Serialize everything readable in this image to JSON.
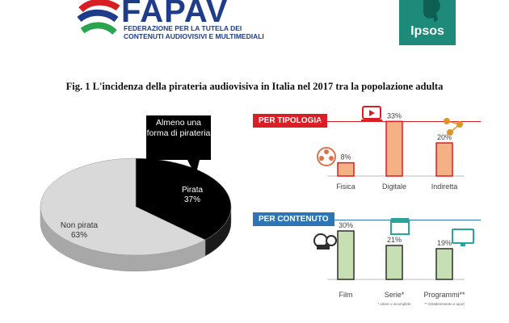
{
  "header": {
    "fapav_logo": "FAPAV",
    "fapav_subtitle_lines": [
      "FEDERAZIONE PER LA TUTELA DEI",
      "CONTENUTI AUDIOVISIVI E MULTIMEDIALI"
    ],
    "ipsos_logo": "Ipsos"
  },
  "figure": {
    "title": "Fig. 1 L'incidenza della pirateria audiovisiva in Italia nel 2017 tra la popolazione adulta",
    "callout": "Almeno una forma di pirateria"
  },
  "colors": {
    "red": "#d81f26",
    "blue": "#2e75b6",
    "pirata": "#000000",
    "non_pirata": "#d9d9d9",
    "bar_tipologia": "#f4b183",
    "bar_contenuto": "#c6e0b4"
  },
  "chart_data": [
    {
      "type": "pie",
      "labels": [
        "Pirata",
        "Non pirata"
      ],
      "values": [
        37,
        63
      ],
      "value_labels": [
        "37%",
        "63%"
      ]
    },
    {
      "type": "bar",
      "title": "PER TIPOLOGIA",
      "categories": [
        "Fisica",
        "Digitale",
        "Indiretta"
      ],
      "values": [
        8,
        33,
        20
      ],
      "value_labels": [
        "8%",
        "33%",
        "20%"
      ],
      "icons": [
        "film-reel-icon",
        "laptop-play-icon",
        "people-share-icon"
      ]
    },
    {
      "type": "bar",
      "title": "PER CONTENUTO",
      "categories": [
        "Film",
        "Serie*",
        "Programmi**"
      ],
      "values": [
        30,
        21,
        19
      ],
      "value_labels": [
        "30%",
        "21%",
        "19%"
      ],
      "icons": [
        "film-reel-icon",
        "tv-series-icon",
        "tv-screen-icon"
      ],
      "footnotes": [
        "* intere o incomplete",
        "** intrattenimento e sport"
      ]
    }
  ]
}
